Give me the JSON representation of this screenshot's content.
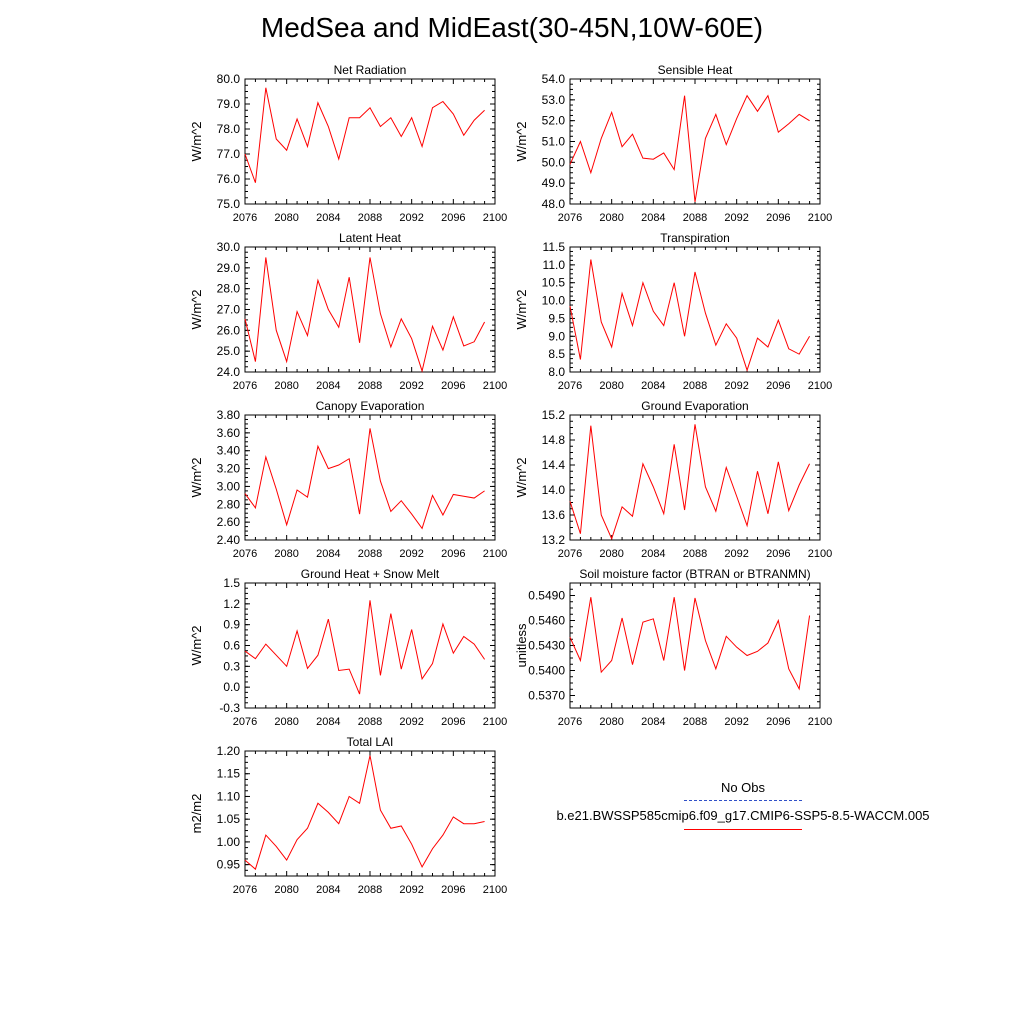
{
  "title": "MedSea and MidEast(30-45N,10W-60E)",
  "legend": {
    "obs_label": "No Obs",
    "obs_color": "#3050c8",
    "case_label": "b.e21.BWSSP585cmip6.f09_g17.CMIP6-SSP5-8.5-WACCM.005",
    "case_color": "#ff0000"
  },
  "chart_data": [
    {
      "type": "line",
      "title": "Net Radiation",
      "xlabel": "",
      "ylabel": "W/m^2",
      "xlim": [
        2076,
        2100
      ],
      "ylim": [
        75.0,
        80.0
      ],
      "xticks": [
        "2076",
        "2080",
        "2084",
        "2088",
        "2092",
        "2096",
        "2100"
      ],
      "yticks": [
        "75.0",
        "76.0",
        "77.0",
        "78.0",
        "79.0",
        "80.0"
      ],
      "x": [
        2076,
        2077,
        2078,
        2079,
        2080,
        2081,
        2082,
        2083,
        2084,
        2085,
        2086,
        2087,
        2088,
        2089,
        2090,
        2091,
        2092,
        2093,
        2094,
        2095,
        2096,
        2097,
        2098,
        2099
      ],
      "series": [
        {
          "name": "b.e21.BWSSP585cmip6.f09_g17.CMIP6-SSP5-8.5-WACCM.005",
          "values": [
            77.0,
            75.85,
            79.65,
            77.6,
            77.15,
            78.4,
            77.3,
            79.05,
            78.1,
            76.8,
            78.45,
            78.45,
            78.85,
            78.1,
            78.45,
            77.7,
            78.45,
            77.3,
            78.85,
            79.1,
            78.6,
            77.75,
            78.35,
            78.75
          ]
        }
      ]
    },
    {
      "type": "line",
      "title": "Sensible Heat",
      "xlabel": "",
      "ylabel": "W/m^2",
      "xlim": [
        2076,
        2100
      ],
      "ylim": [
        48.0,
        54.0
      ],
      "xticks": [
        "2076",
        "2080",
        "2084",
        "2088",
        "2092",
        "2096",
        "2100"
      ],
      "yticks": [
        "48.0",
        "49.0",
        "50.0",
        "51.0",
        "52.0",
        "53.0",
        "54.0"
      ],
      "x": [
        2076,
        2077,
        2078,
        2079,
        2080,
        2081,
        2082,
        2083,
        2084,
        2085,
        2086,
        2087,
        2088,
        2089,
        2090,
        2091,
        2092,
        2093,
        2094,
        2095,
        2096,
        2097,
        2098,
        2099
      ],
      "series": [
        {
          "name": "b.e21.BWSSP585cmip6.f09_g17.CMIP6-SSP5-8.5-WACCM.005",
          "values": [
            49.9,
            51.0,
            49.5,
            51.15,
            52.4,
            50.75,
            51.35,
            50.2,
            50.15,
            50.45,
            49.65,
            53.2,
            48.1,
            51.15,
            52.3,
            50.85,
            52.1,
            53.2,
            52.45,
            53.2,
            51.45,
            51.85,
            52.3,
            52.0
          ]
        }
      ]
    },
    {
      "type": "line",
      "title": "Latent Heat",
      "xlabel": "",
      "ylabel": "W/m^2",
      "xlim": [
        2076,
        2100
      ],
      "ylim": [
        24.0,
        30.0
      ],
      "xticks": [
        "2076",
        "2080",
        "2084",
        "2088",
        "2092",
        "2096",
        "2100"
      ],
      "yticks": [
        "24.0",
        "25.0",
        "26.0",
        "27.0",
        "28.0",
        "29.0",
        "30.0"
      ],
      "x": [
        2076,
        2077,
        2078,
        2079,
        2080,
        2081,
        2082,
        2083,
        2084,
        2085,
        2086,
        2087,
        2088,
        2089,
        2090,
        2091,
        2092,
        2093,
        2094,
        2095,
        2096,
        2097,
        2098,
        2099
      ],
      "series": [
        {
          "name": "b.e21.BWSSP585cmip6.f09_g17.CMIP6-SSP5-8.5-WACCM.005",
          "values": [
            26.55,
            24.5,
            29.5,
            26.0,
            24.5,
            26.9,
            25.75,
            28.4,
            27.0,
            26.15,
            28.55,
            25.4,
            29.5,
            26.8,
            25.2,
            26.55,
            25.6,
            24.05,
            26.2,
            25.05,
            26.65,
            25.25,
            25.45,
            26.4
          ]
        }
      ]
    },
    {
      "type": "line",
      "title": "Transpiration",
      "xlabel": "",
      "ylabel": "W/m^2",
      "xlim": [
        2076,
        2100
      ],
      "ylim": [
        8.0,
        11.5
      ],
      "xticks": [
        "2076",
        "2080",
        "2084",
        "2088",
        "2092",
        "2096",
        "2100"
      ],
      "yticks": [
        "8.0",
        "8.5",
        "9.0",
        "9.5",
        "10.0",
        "10.5",
        "11.0",
        "11.5"
      ],
      "x": [
        2076,
        2077,
        2078,
        2079,
        2080,
        2081,
        2082,
        2083,
        2084,
        2085,
        2086,
        2087,
        2088,
        2089,
        2090,
        2091,
        2092,
        2093,
        2094,
        2095,
        2096,
        2097,
        2098,
        2099
      ],
      "series": [
        {
          "name": "b.e21.BWSSP585cmip6.f09_g17.CMIP6-SSP5-8.5-WACCM.005",
          "values": [
            9.85,
            8.35,
            11.15,
            9.4,
            8.7,
            10.2,
            9.3,
            10.5,
            9.7,
            9.3,
            10.5,
            9.0,
            10.8,
            9.65,
            8.75,
            9.35,
            8.95,
            8.05,
            8.95,
            8.7,
            9.45,
            8.65,
            8.5,
            9.0
          ]
        }
      ]
    },
    {
      "type": "line",
      "title": "Canopy Evaporation",
      "xlabel": "",
      "ylabel": "W/m^2",
      "xlim": [
        2076,
        2100
      ],
      "ylim": [
        2.4,
        3.8
      ],
      "xticks": [
        "2076",
        "2080",
        "2084",
        "2088",
        "2092",
        "2096",
        "2100"
      ],
      "yticks": [
        "2.40",
        "2.60",
        "2.80",
        "3.00",
        "3.20",
        "3.40",
        "3.60",
        "3.80"
      ],
      "x": [
        2076,
        2077,
        2078,
        2079,
        2080,
        2081,
        2082,
        2083,
        2084,
        2085,
        2086,
        2087,
        2088,
        2089,
        2090,
        2091,
        2092,
        2093,
        2094,
        2095,
        2096,
        2097,
        2098,
        2099
      ],
      "series": [
        {
          "name": "b.e21.BWSSP585cmip6.f09_g17.CMIP6-SSP5-8.5-WACCM.005",
          "values": [
            2.92,
            2.76,
            3.33,
            2.97,
            2.57,
            2.96,
            2.88,
            3.45,
            3.2,
            3.24,
            3.31,
            2.69,
            3.65,
            3.06,
            2.72,
            2.84,
            2.69,
            2.53,
            2.9,
            2.68,
            2.91,
            2.89,
            2.87,
            2.95
          ]
        }
      ]
    },
    {
      "type": "line",
      "title": "Ground Evaporation",
      "xlabel": "",
      "ylabel": "W/m^2",
      "xlim": [
        2076,
        2100
      ],
      "ylim": [
        13.2,
        15.2
      ],
      "xticks": [
        "2076",
        "2080",
        "2084",
        "2088",
        "2092",
        "2096",
        "2100"
      ],
      "yticks": [
        "13.2",
        "13.6",
        "14.0",
        "14.4",
        "14.8",
        "15.2"
      ],
      "x": [
        2076,
        2077,
        2078,
        2079,
        2080,
        2081,
        2082,
        2083,
        2084,
        2085,
        2086,
        2087,
        2088,
        2089,
        2090,
        2091,
        2092,
        2093,
        2094,
        2095,
        2096,
        2097,
        2098,
        2099
      ],
      "series": [
        {
          "name": "b.e21.BWSSP585cmip6.f09_g17.CMIP6-SSP5-8.5-WACCM.005",
          "values": [
            13.82,
            13.3,
            15.03,
            13.6,
            13.22,
            13.73,
            13.58,
            14.42,
            14.05,
            13.62,
            14.73,
            13.68,
            15.05,
            14.05,
            13.66,
            14.36,
            13.9,
            13.43,
            14.3,
            13.62,
            14.45,
            13.67,
            14.08,
            14.42
          ]
        }
      ]
    },
    {
      "type": "line",
      "title": "Ground Heat + Snow Melt",
      "xlabel": "",
      "ylabel": "W/m^2",
      "xlim": [
        2076,
        2100
      ],
      "ylim": [
        -0.3,
        1.5
      ],
      "xticks": [
        "2076",
        "2080",
        "2084",
        "2088",
        "2092",
        "2096",
        "2100"
      ],
      "yticks": [
        "-0.3",
        "0.0",
        "0.3",
        "0.6",
        "0.9",
        "1.2",
        "1.5"
      ],
      "x": [
        2076,
        2077,
        2078,
        2079,
        2080,
        2081,
        2082,
        2083,
        2084,
        2085,
        2086,
        2087,
        2088,
        2089,
        2090,
        2091,
        2092,
        2093,
        2094,
        2095,
        2096,
        2097,
        2098,
        2099
      ],
      "series": [
        {
          "name": "b.e21.BWSSP585cmip6.f09_g17.CMIP6-SSP5-8.5-WACCM.005",
          "values": [
            0.52,
            0.41,
            0.62,
            0.46,
            0.3,
            0.81,
            0.27,
            0.46,
            0.98,
            0.24,
            0.26,
            -0.1,
            1.25,
            0.17,
            1.06,
            0.26,
            0.83,
            0.12,
            0.34,
            0.91,
            0.49,
            0.73,
            0.62,
            0.4
          ]
        }
      ]
    },
    {
      "type": "line",
      "title": "Soil moisture factor (BTRAN or BTRANMN)",
      "xlabel": "",
      "ylabel": "unitless",
      "xlim": [
        2076,
        2100
      ],
      "ylim": [
        0.5355,
        0.5505
      ],
      "xticks": [
        "2076",
        "2080",
        "2084",
        "2088",
        "2092",
        "2096",
        "2100"
      ],
      "yticks": [
        "0.5370",
        "0.5400",
        "0.5430",
        "0.5460",
        "0.5490"
      ],
      "x": [
        2076,
        2077,
        2078,
        2079,
        2080,
        2081,
        2082,
        2083,
        2084,
        2085,
        2086,
        2087,
        2088,
        2089,
        2090,
        2091,
        2092,
        2093,
        2094,
        2095,
        2096,
        2097,
        2098,
        2099
      ],
      "series": [
        {
          "name": "b.e21.BWSSP585cmip6.f09_g17.CMIP6-SSP5-8.5-WACCM.005",
          "values": [
            0.544,
            0.5412,
            0.5488,
            0.5398,
            0.5412,
            0.5463,
            0.5407,
            0.5458,
            0.5462,
            0.5412,
            0.5488,
            0.54,
            0.5487,
            0.5436,
            0.5402,
            0.5441,
            0.5428,
            0.5418,
            0.5423,
            0.5433,
            0.546,
            0.5402,
            0.5378,
            0.5466
          ]
        }
      ]
    },
    {
      "type": "line",
      "title": "Total LAI",
      "xlabel": "",
      "ylabel": "m2/m2",
      "xlim": [
        2076,
        2100
      ],
      "ylim": [
        0.925,
        1.2
      ],
      "xticks": [
        "2076",
        "2080",
        "2084",
        "2088",
        "2092",
        "2096",
        "2100"
      ],
      "yticks": [
        "0.95",
        "1.00",
        "1.05",
        "1.10",
        "1.15",
        "1.20"
      ],
      "x": [
        2076,
        2077,
        2078,
        2079,
        2080,
        2081,
        2082,
        2083,
        2084,
        2085,
        2086,
        2087,
        2088,
        2089,
        2090,
        2091,
        2092,
        2093,
        2094,
        2095,
        2096,
        2097,
        2098,
        2099
      ],
      "series": [
        {
          "name": "b.e21.BWSSP585cmip6.f09_g17.CMIP6-SSP5-8.5-WACCM.005",
          "values": [
            0.96,
            0.94,
            1.015,
            0.99,
            0.96,
            1.005,
            1.03,
            1.085,
            1.065,
            1.04,
            1.1,
            1.085,
            1.19,
            1.07,
            1.03,
            1.035,
            0.995,
            0.945,
            0.985,
            1.015,
            1.055,
            1.04,
            1.04,
            1.045
          ]
        }
      ]
    }
  ]
}
